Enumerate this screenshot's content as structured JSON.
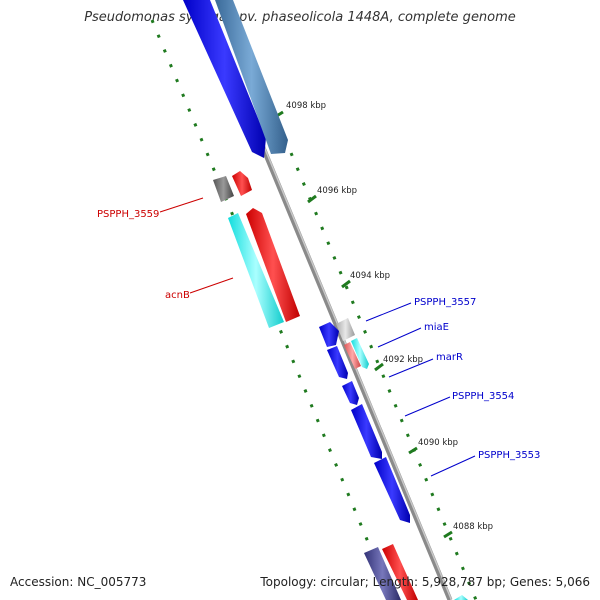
{
  "title": "Pseudomonas syringae pv. phaseolicola 1448A, complete genome",
  "footer": {
    "accession": "Accession: NC_005773",
    "summary": "Topology: circular; Length: 5,928,787 bp; Genes: 5,066"
  },
  "colors": {
    "backbone": "#8a8a8a",
    "ticks": "#1f7a1f",
    "blue_gene": "#1010ee",
    "steel_gene": "#4a7fb0",
    "red_gene": "#ee1111",
    "cyan_gene": "#22eeee",
    "gray_gene": "#666666",
    "light_gray_gene": "#bbbbbb",
    "pink_gene": "#ee7777",
    "navy_gene": "#444488",
    "forward_label": "#0000cc",
    "reverse_label": "#cc0000"
  },
  "tick_labels": [
    {
      "text": "4098 kbp"
    },
    {
      "text": "4096 kbp"
    },
    {
      "text": "4094 kbp"
    },
    {
      "text": "4092 kbp"
    },
    {
      "text": "4090 kbp"
    },
    {
      "text": "4088 kbp"
    }
  ],
  "gene_labels": [
    {
      "text": "PSPPH_3559",
      "strand": "reverse"
    },
    {
      "text": "acnB",
      "strand": "reverse"
    },
    {
      "text": "PSPPH_3557",
      "strand": "forward"
    },
    {
      "text": "miaE",
      "strand": "forward"
    },
    {
      "text": "marR",
      "strand": "forward"
    },
    {
      "text": "PSPPH_3554",
      "strand": "forward"
    },
    {
      "text": "PSPPH_3553",
      "strand": "forward"
    }
  ]
}
